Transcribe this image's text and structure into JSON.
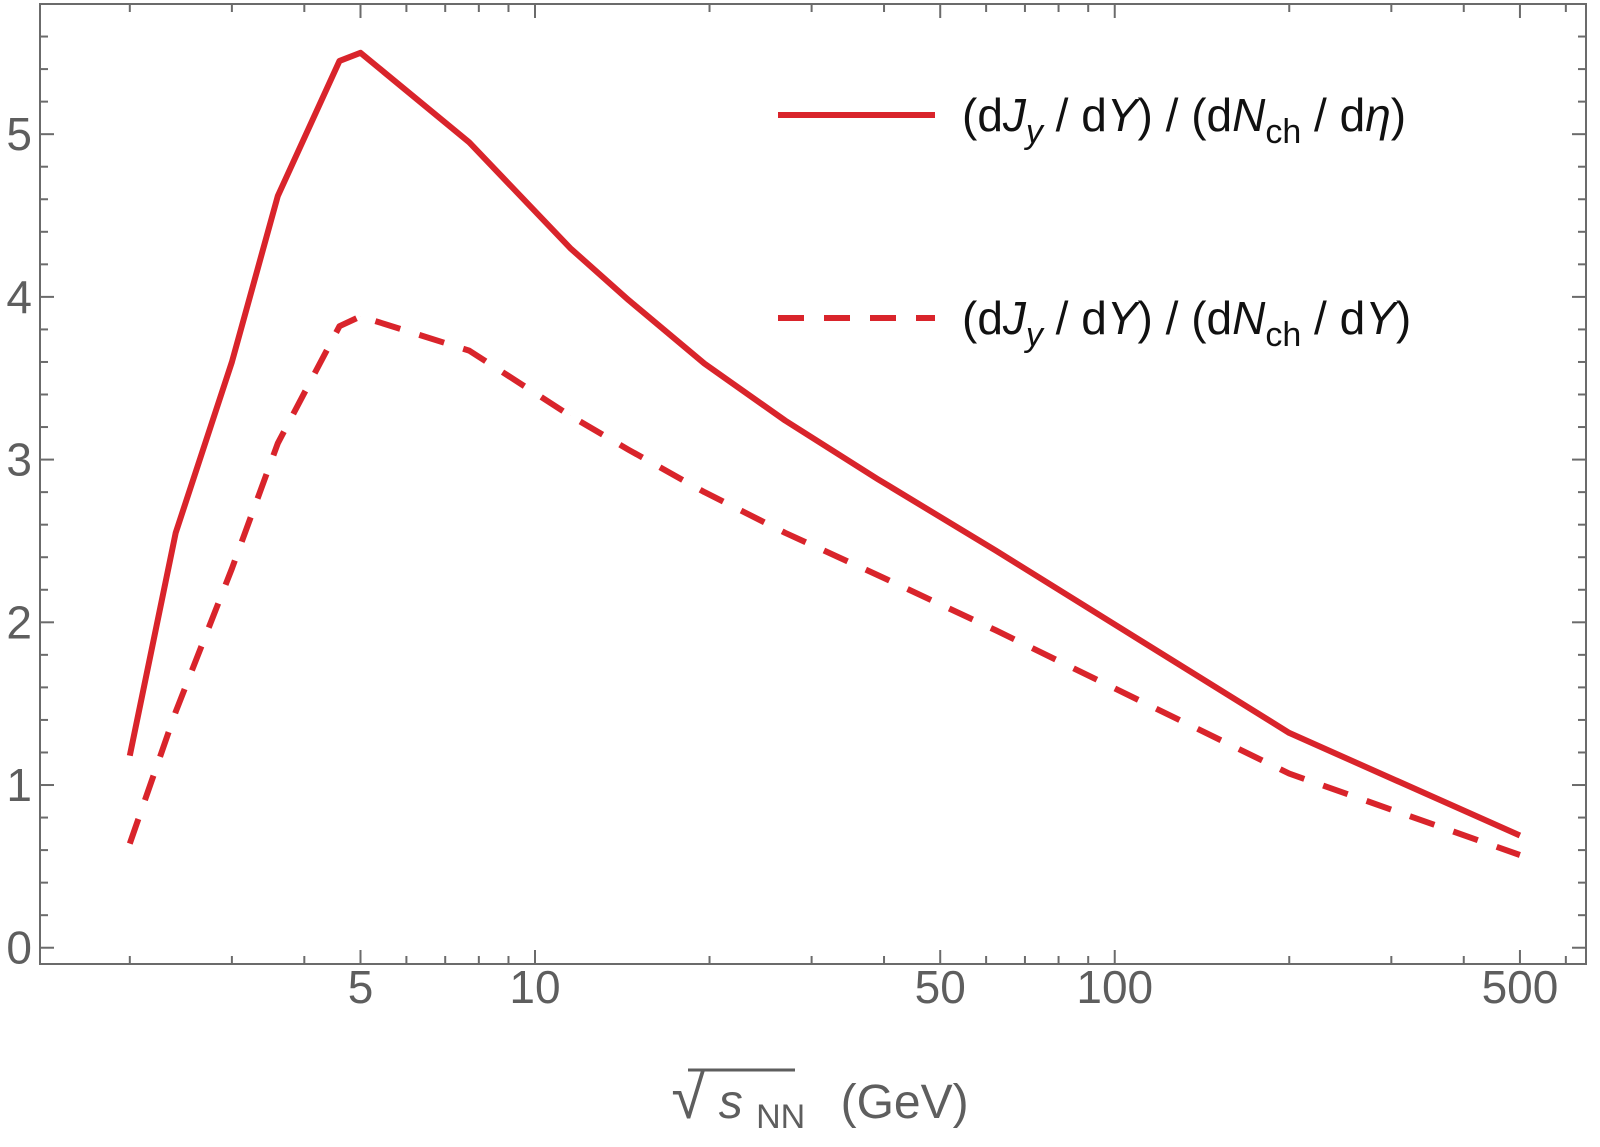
{
  "chart_data": {
    "type": "line",
    "title": "",
    "xlabel": "√s_NN (GeV)",
    "xlabel_parts": {
      "sqrt": "√",
      "var": "s",
      "sub": "NN",
      "unit": "(GeV)"
    },
    "ylabel": "",
    "x_scale": "log",
    "xlim": [
      1.4,
      650
    ],
    "ylim": [
      -0.1,
      5.8
    ],
    "x_ticks": [
      {
        "value": 5,
        "label": "5"
      },
      {
        "value": 10,
        "label": "10"
      },
      {
        "value": 50,
        "label": "50"
      },
      {
        "value": 100,
        "label": "100"
      },
      {
        "value": 500,
        "label": "500"
      }
    ],
    "y_ticks": [
      {
        "value": 0,
        "label": "0"
      },
      {
        "value": 1,
        "label": "1"
      },
      {
        "value": 2,
        "label": "2"
      },
      {
        "value": 3,
        "label": "3"
      },
      {
        "value": 4,
        "label": "4"
      },
      {
        "value": 5,
        "label": "5"
      }
    ],
    "legend_position": "top-right",
    "series": [
      {
        "name": "(dJy / dY) / (dNch / dη)",
        "legend_parts": [
          "(d",
          "J",
          "y",
          " / d",
          "Y",
          ") / (d",
          "N",
          "ch",
          " / d",
          "η",
          ")"
        ],
        "style": "solid",
        "color": "#d9242b",
        "x": [
          2,
          2.4,
          3.0,
          3.6,
          4.6,
          5.0,
          7.7,
          11.5,
          14.5,
          19.6,
          27,
          39,
          62.4,
          200,
          500
        ],
        "y": [
          1.18,
          2.55,
          3.6,
          4.62,
          5.45,
          5.5,
          4.95,
          4.3,
          3.98,
          3.59,
          3.24,
          2.88,
          2.44,
          1.32,
          0.69
        ]
      },
      {
        "name": "(dJy / dY) / (dNch / dY)",
        "legend_parts": [
          "(d",
          "J",
          "y",
          " / d",
          "Y",
          ") / (d",
          "N",
          "ch",
          " / d",
          "Y",
          ")"
        ],
        "style": "dashed",
        "color": "#d9242b",
        "x": [
          2,
          2.4,
          3.0,
          3.6,
          4.6,
          5.0,
          7.7,
          11.5,
          14.5,
          19.6,
          27,
          39,
          62.4,
          200,
          500
        ],
        "y": [
          0.64,
          1.45,
          2.33,
          3.1,
          3.82,
          3.88,
          3.67,
          3.27,
          3.06,
          2.8,
          2.55,
          2.29,
          1.95,
          1.07,
          0.57
        ]
      }
    ]
  }
}
